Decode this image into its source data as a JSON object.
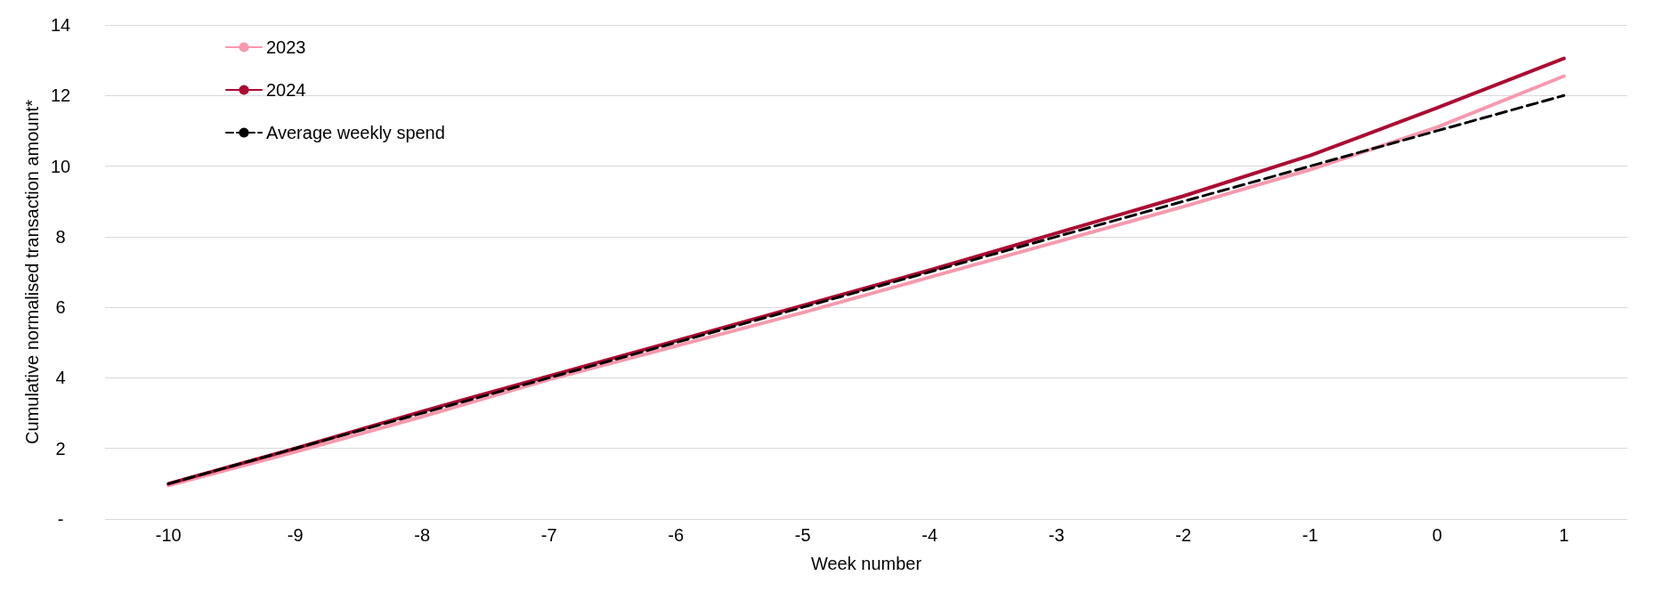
{
  "chart_data": {
    "type": "line",
    "xlabel": "Week number",
    "ylabel": "Cumulative normalised transaction amount*",
    "categories": [
      "-10",
      "-9",
      "-8",
      "-7",
      "-6",
      "-5",
      "-4",
      "-3",
      "-2",
      "-1",
      "0",
      "1"
    ],
    "series": [
      {
        "name": "2023",
        "color": "#f799ad",
        "values": [
          0.95,
          1.9,
          2.9,
          3.95,
          4.9,
          5.85,
          6.85,
          7.85,
          8.85,
          9.9,
          11.1,
          12.55
        ]
      },
      {
        "name": "2024",
        "color": "#ac0a32",
        "values": [
          1.0,
          2.0,
          3.05,
          4.05,
          5.05,
          6.05,
          7.05,
          8.1,
          9.15,
          10.3,
          11.65,
          13.05
        ]
      },
      {
        "name": "Average weekly spend",
        "color": "#000000",
        "line_style": "dashed",
        "values": [
          1,
          2,
          3,
          4,
          5,
          6,
          7,
          8,
          9,
          10,
          11,
          12
        ]
      }
    ],
    "ylim": [
      0,
      14
    ],
    "yticks": [
      {
        "value": 0,
        "label": "-"
      },
      2,
      4,
      6,
      8,
      10,
      12,
      14
    ],
    "grid": "y",
    "legend": "top left",
    "marker": "none"
  }
}
